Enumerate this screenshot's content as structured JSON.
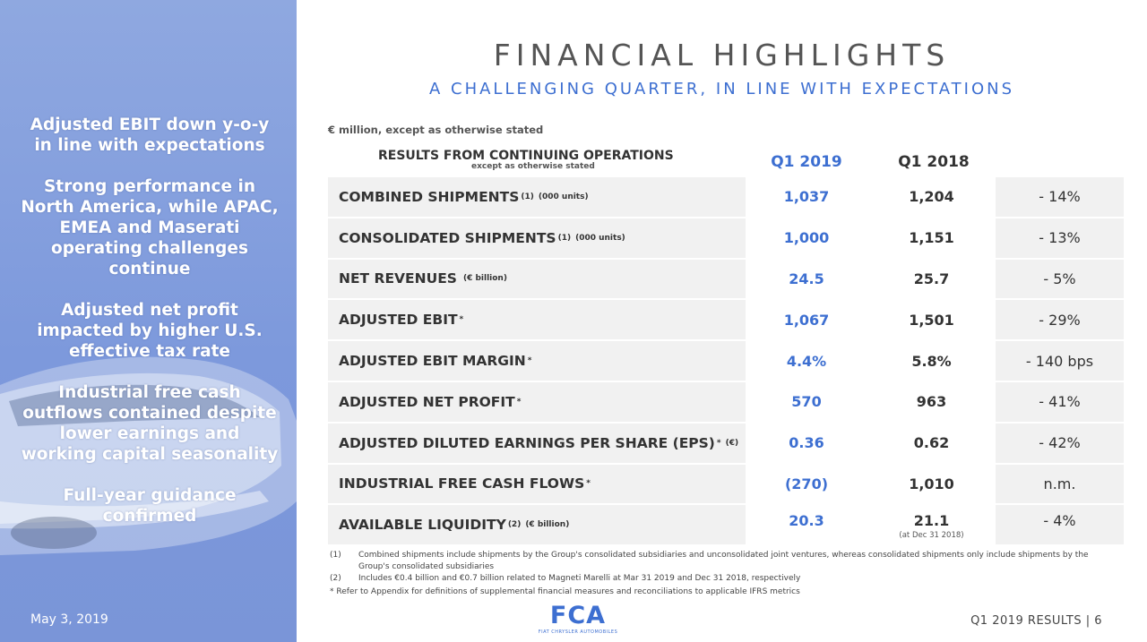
{
  "sidebar": {
    "highlights": [
      "Adjusted EBIT down y-o-y in line with expectations",
      "Strong performance in North America, while APAC, EMEA and Maserati operating challenges continue",
      "Adjusted net profit impacted by higher U.S. effective tax rate",
      "Industrial free cash outflows contained despite lower earnings and working capital seasonality",
      "Full-year guidance confirmed"
    ],
    "date": "May 3, 2019"
  },
  "header": {
    "title": "FINANCIAL HIGHLIGHTS",
    "subtitle": "A CHALLENGING QUARTER, IN LINE WITH EXPECTATIONS"
  },
  "table": {
    "units_note": "€ million, except as otherwise stated",
    "header_main": "RESULTS FROM CONTINUING OPERATIONS",
    "header_sub": "except as otherwise stated",
    "col_q1_2019": "Q1 2019",
    "col_q1_2018": "Q1 2018",
    "rows": [
      {
        "label": "COMBINED SHIPMENTS",
        "sup": "(1)",
        "unit": "(000 units)",
        "q1_2019": "1,037",
        "q1_2018": "1,204",
        "change": "- 14%"
      },
      {
        "label": "CONSOLIDATED SHIPMENTS",
        "sup": "(1)",
        "unit": "(000 units)",
        "q1_2019": "1,000",
        "q1_2018": "1,151",
        "change": "- 13%"
      },
      {
        "label": "NET REVENUES",
        "sup": "",
        "unit": "(€ billion)",
        "q1_2019": "24.5",
        "q1_2018": "25.7",
        "change": "- 5%"
      },
      {
        "label": "ADJUSTED EBIT",
        "sup": "*",
        "unit": "",
        "q1_2019": "1,067",
        "q1_2018": "1,501",
        "change": "- 29%"
      },
      {
        "label": "ADJUSTED EBIT MARGIN",
        "sup": "*",
        "unit": "",
        "q1_2019": "4.4%",
        "q1_2018": "5.8%",
        "change": "- 140 bps"
      },
      {
        "label": "ADJUSTED NET PROFIT",
        "sup": "*",
        "unit": "",
        "q1_2019": "570",
        "q1_2018": "963",
        "change": "- 41%"
      },
      {
        "label": "ADJUSTED DILUTED EARNINGS PER SHARE (EPS)",
        "sup": "*",
        "unit": "(€)",
        "q1_2019": "0.36",
        "q1_2018": "0.62",
        "change": "- 42%"
      },
      {
        "label": "INDUSTRIAL FREE CASH FLOWS",
        "sup": "*",
        "unit": "",
        "q1_2019": "(270)",
        "q1_2018": "1,010",
        "change": "n.m."
      },
      {
        "label": "AVAILABLE LIQUIDITY",
        "sup": "(2)",
        "unit": "(€ billion)",
        "q1_2019": "20.3",
        "q1_2018": "21.1",
        "q1_2018_note": "(at Dec 31 2018)",
        "change": "- 4%"
      }
    ]
  },
  "footnotes": [
    {
      "num": "(1)",
      "text": "Combined shipments include shipments by the Group's consolidated subsidiaries and unconsolidated joint ventures, whereas consolidated shipments only include shipments by the Group's consolidated subsidiaries"
    },
    {
      "num": "(2)",
      "text": "Includes €0.4 billion and €0.7 billion related to Magneti Marelli at Mar 31 2019 and Dec 31 2018, respectively"
    },
    {
      "num": "*",
      "text": "Refer to Appendix for definitions of supplemental financial measures and reconciliations to applicable IFRS metrics"
    }
  ],
  "footer": {
    "logo_text": "FCA",
    "logo_sub": "FIAT CHRYSLER AUTOMOBILES",
    "page_label": "Q1 2019 RESULTS | 6"
  },
  "colors": {
    "accent": "#3d6fd1",
    "sidebar": "#7d99dc"
  }
}
